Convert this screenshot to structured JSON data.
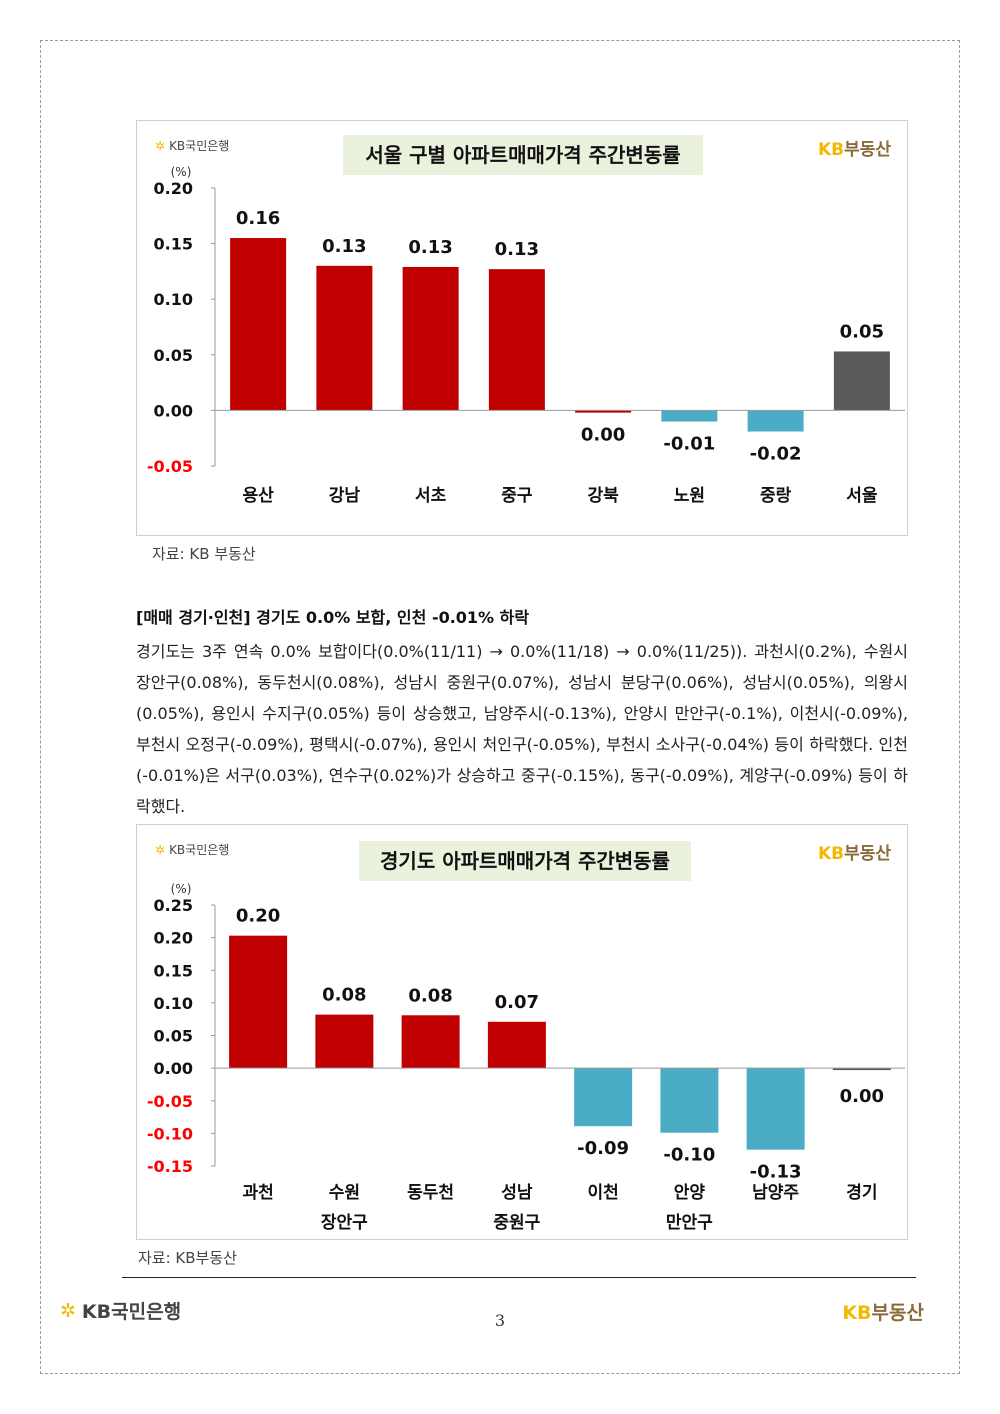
{
  "colors": {
    "positive": "#c00000",
    "negative": "#4bacc6",
    "aggregate": "#595959",
    "title_bg": "#eaf1dd",
    "negative_tick": "#ff0000"
  },
  "bank_logo": {
    "icon": "kb-star-icon",
    "text": "KB국민은행"
  },
  "brand": {
    "kb": "KB",
    "text": "부동산"
  },
  "chart_data": [
    {
      "type": "bar",
      "title": "서울 구별 아파트매매가격 주간변동률",
      "ylabel": "(%)",
      "ylim": [
        -0.05,
        0.2
      ],
      "yticks": [
        "0.20",
        "0.15",
        "0.10",
        "0.05",
        "0.00",
        "-0.05"
      ],
      "ytick_values": [
        0.2,
        0.15,
        0.1,
        0.05,
        0.0,
        -0.05
      ],
      "categories": [
        [
          "용산"
        ],
        [
          "강남"
        ],
        [
          "서초"
        ],
        [
          "중구"
        ],
        [
          "강북"
        ],
        [
          "노원"
        ],
        [
          "중랑"
        ],
        [
          "서울"
        ]
      ],
      "values": [
        0.155,
        0.13,
        0.129,
        0.127,
        -0.002,
        -0.01,
        -0.019,
        0.053
      ],
      "labels": [
        "0.16",
        "0.13",
        "0.13",
        "0.13",
        "0.00",
        "-0.01",
        "-0.02",
        "0.05"
      ],
      "aggregate_index": 7,
      "grid": false
    },
    {
      "type": "bar",
      "title": "경기도 아파트매매가격 주간변동률",
      "ylabel": "(%)",
      "ylim": [
        -0.15,
        0.25
      ],
      "yticks": [
        "0.25",
        "0.20",
        "0.15",
        "0.10",
        "0.05",
        "0.00",
        "-0.05",
        "-0.10",
        "-0.15"
      ],
      "ytick_values": [
        0.25,
        0.2,
        0.15,
        0.1,
        0.05,
        0.0,
        -0.05,
        -0.1,
        -0.15
      ],
      "categories": [
        [
          "과천"
        ],
        [
          "수원",
          "장안구"
        ],
        [
          "동두천"
        ],
        [
          "성남",
          "중원구"
        ],
        [
          "이천"
        ],
        [
          "안양",
          "만안구"
        ],
        [
          "남양주"
        ],
        [
          "경기"
        ]
      ],
      "values": [
        0.203,
        0.082,
        0.081,
        0.071,
        -0.089,
        -0.099,
        -0.125,
        -0.003
      ],
      "labels": [
        "0.20",
        "0.08",
        "0.08",
        "0.07",
        "-0.09",
        "-0.10",
        "-0.13",
        "0.00"
      ],
      "aggregate_index": 7,
      "grid": false
    }
  ],
  "source1": "자료: KB 부동산",
  "source2": "자료: KB부동산",
  "section": {
    "heading": "[매매 경기·인천] 경기도 0.0% 보합, 인천 -0.01% 하락",
    "body": "경기도는 3주 연속 0.0% 보합이다(0.0%(11/11) → 0.0%(11/18) → 0.0%(11/25)). 과천시(0.2%), 수원시 장안구(0.08%), 동두천시(0.08%), 성남시 중원구(0.07%), 성남시 분당구(0.06%), 성남시(0.05%), 의왕시(0.05%), 용인시 수지구(0.05%) 등이 상승했고, 남양주시(-0.13%), 안양시 만안구(-0.1%), 이천시(-0.09%), 부천시 오정구(-0.09%), 평택시(-0.07%), 용인시 처인구(-0.05%), 부천시 소사구(-0.04%) 등이 하락했다. 인천(-0.01%)은 서구(0.03%), 연수구(0.02%)가 상승하고 중구(-0.15%), 동구(-0.09%), 계양구(-0.09%) 등이 하락했다."
  },
  "page_number": "3"
}
